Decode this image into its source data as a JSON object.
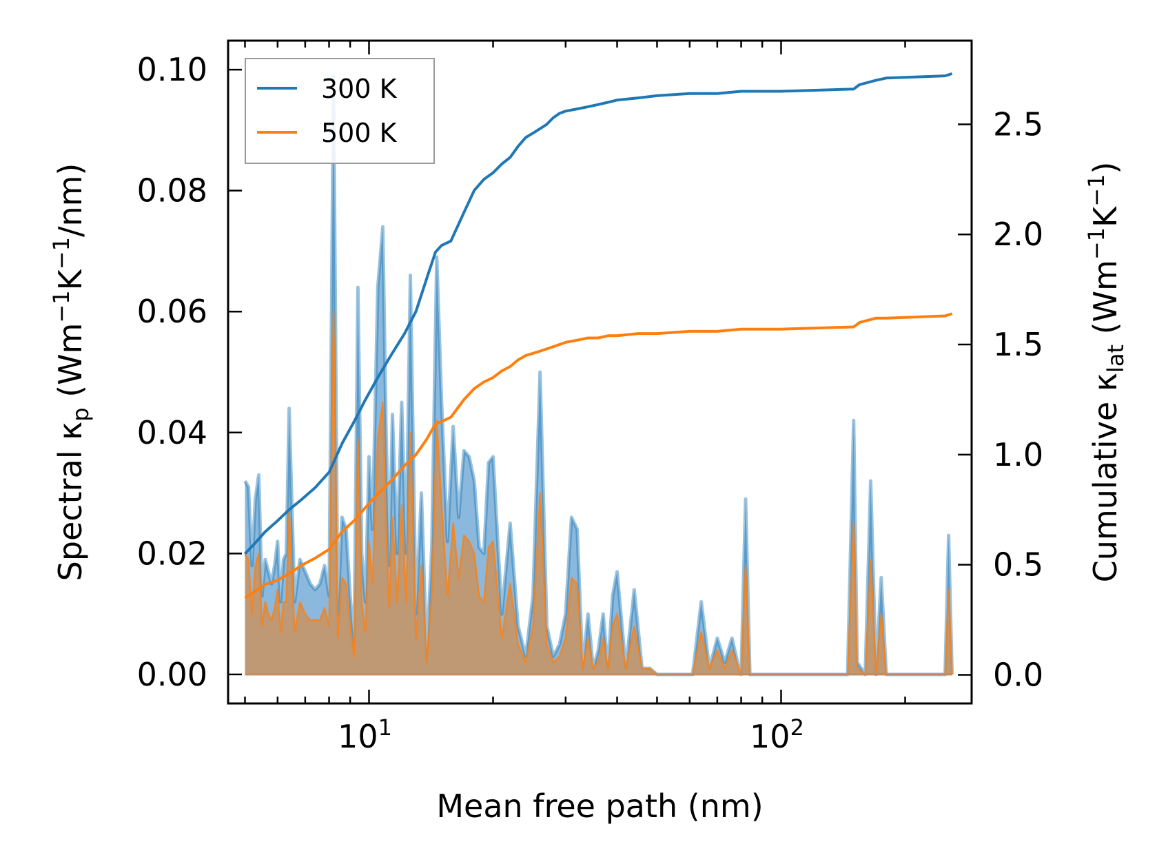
{
  "chart_data": {
    "type": "line",
    "title": "",
    "xlabel": "Mean free path (nm)",
    "ylabel_left": {
      "main": "Spectral κ",
      "sub": "p",
      "units_open": " (Wm",
      "sup1": "−1",
      "mid": "K",
      "sup2": "−1",
      "units_close": "/nm)"
    },
    "ylabel_right": {
      "main": "Cumulative κ",
      "sub": "lat",
      "units_open": " (Wm",
      "sup1": "−1",
      "mid": "K",
      "sup2": "−1",
      "units_close": ")"
    },
    "xscale": "log",
    "xlim": [
      4.55,
      290
    ],
    "ylim_left": [
      -0.0048,
      0.1048
    ],
    "ylim_right": [
      -0.13,
      2.88
    ],
    "x_ticks": [
      {
        "value": 10,
        "base": "10",
        "exp": "1"
      },
      {
        "value": 100,
        "base": "10",
        "exp": "2"
      }
    ],
    "y_left_ticks": [
      "0.00",
      "0.02",
      "0.04",
      "0.06",
      "0.08",
      "0.10"
    ],
    "y_right_ticks": [
      "0.0",
      "0.5",
      "1.0",
      "1.5",
      "2.0",
      "2.5"
    ],
    "legend": {
      "position": "top-left",
      "entries": [
        "300 K",
        "500 K"
      ]
    },
    "colors": {
      "t300": "#1f77b4",
      "t500": "#ff7f0e",
      "fill300": "#5a9bd0",
      "fill500": "#c49568"
    },
    "spectral": {
      "x": [
        5.0,
        5.1,
        5.2,
        5.3,
        5.4,
        5.5,
        5.6,
        5.7,
        5.8,
        5.9,
        6.0,
        6.1,
        6.2,
        6.3,
        6.4,
        6.6,
        6.8,
        7.0,
        7.2,
        7.4,
        7.6,
        7.8,
        8.0,
        8.2,
        8.4,
        8.6,
        8.8,
        9.0,
        9.2,
        9.4,
        9.6,
        9.8,
        10.0,
        10.2,
        10.5,
        10.8,
        11.0,
        11.2,
        11.4,
        11.7,
        12.0,
        12.3,
        12.6,
        13.0,
        13.4,
        13.8,
        14.2,
        14.6,
        15.0,
        15.5,
        16.0,
        16.5,
        17.0,
        17.5,
        18.0,
        18.5,
        19.0,
        19.5,
        20.0,
        21.0,
        22.0,
        23.0,
        24.0,
        25.0,
        26.0,
        27.0,
        28.0,
        29.0,
        30.0,
        31.0,
        32.0,
        33.0,
        34.0,
        35.0,
        36.0,
        37.0,
        38.0,
        39.0,
        40.0,
        42.0,
        44.0,
        46.0,
        48.0,
        50.0,
        52.0,
        55.0,
        58.0,
        61.0,
        64.0,
        67.0,
        70.0,
        73.0,
        76.0,
        79.0,
        80.0,
        82.0,
        84.0,
        90.0,
        100.0,
        120.0,
        145.0,
        150.0,
        153.0,
        160.0,
        165.0,
        170.0,
        175.0,
        180.0,
        185.0,
        190.0,
        200.0,
        240.0,
        250.0,
        255.0,
        260.0
      ],
      "s300": [
        0.032,
        0.031,
        0.018,
        0.029,
        0.033,
        0.013,
        0.019,
        0.017,
        0.015,
        0.018,
        0.022,
        0.012,
        0.019,
        0.02,
        0.044,
        0.012,
        0.019,
        0.017,
        0.015,
        0.014,
        0.015,
        0.018,
        0.013,
        0.099,
        0.01,
        0.026,
        0.024,
        0.013,
        0.005,
        0.064,
        0.02,
        0.012,
        0.036,
        0.024,
        0.064,
        0.074,
        0.04,
        0.018,
        0.043,
        0.02,
        0.045,
        0.02,
        0.066,
        0.01,
        0.03,
        0.003,
        0.021,
        0.069,
        0.045,
        0.022,
        0.041,
        0.026,
        0.037,
        0.036,
        0.032,
        0.021,
        0.02,
        0.035,
        0.036,
        0.01,
        0.025,
        0.008,
        0.003,
        0.013,
        0.05,
        0.008,
        0.003,
        0.005,
        0.01,
        0.026,
        0.024,
        0.001,
        0.01,
        0.001,
        0.004,
        0.01,
        0.001,
        0.013,
        0.017,
        0.001,
        0.014,
        0.001,
        0.001,
        0.0,
        0.0,
        0.0,
        0.0,
        0.0,
        0.012,
        0.001,
        0.006,
        0.002,
        0.006,
        0.001,
        0.0,
        0.029,
        0.0,
        0.0,
        0.0,
        0.0,
        0.0,
        0.042,
        0.002,
        0.0,
        0.032,
        0.0,
        0.016,
        0.0,
        0.0,
        0.0,
        0.0,
        0.0,
        0.0,
        0.023,
        0.0
      ],
      "s500": [
        0.02,
        0.019,
        0.01,
        0.018,
        0.02,
        0.008,
        0.012,
        0.01,
        0.009,
        0.011,
        0.014,
        0.007,
        0.012,
        0.012,
        0.027,
        0.007,
        0.012,
        0.01,
        0.009,
        0.009,
        0.009,
        0.011,
        0.008,
        0.06,
        0.006,
        0.016,
        0.015,
        0.008,
        0.003,
        0.039,
        0.012,
        0.007,
        0.022,
        0.015,
        0.039,
        0.045,
        0.024,
        0.011,
        0.026,
        0.012,
        0.028,
        0.012,
        0.04,
        0.006,
        0.018,
        0.002,
        0.013,
        0.042,
        0.028,
        0.013,
        0.025,
        0.016,
        0.023,
        0.022,
        0.02,
        0.013,
        0.012,
        0.021,
        0.022,
        0.006,
        0.015,
        0.005,
        0.002,
        0.008,
        0.03,
        0.005,
        0.002,
        0.003,
        0.006,
        0.016,
        0.015,
        0.001,
        0.006,
        0.001,
        0.002,
        0.006,
        0.001,
        0.008,
        0.01,
        0.001,
        0.008,
        0.001,
        0.001,
        0.0,
        0.0,
        0.0,
        0.0,
        0.0,
        0.007,
        0.001,
        0.004,
        0.001,
        0.004,
        0.001,
        0.0,
        0.018,
        0.0,
        0.0,
        0.0,
        0.0,
        0.0,
        0.025,
        0.001,
        0.0,
        0.019,
        0.0,
        0.01,
        0.0,
        0.0,
        0.0,
        0.0,
        0.0,
        0.0,
        0.014,
        0.0
      ]
    },
    "cumulative": {
      "x": [
        5.0,
        5.3,
        5.6,
        6.0,
        6.4,
        6.9,
        7.4,
        8.0,
        8.6,
        9.2,
        9.8,
        10.5,
        11.3,
        12.2,
        13.0,
        13.8,
        14.5,
        15.0,
        15.8,
        17.0,
        18.0,
        19.0,
        20.0,
        21.0,
        22.0,
        23.0,
        24.0,
        25.0,
        26.0,
        27.0,
        28.0,
        29.0,
        30.0,
        32.0,
        34.0,
        36.0,
        38.0,
        40.0,
        45.0,
        50.0,
        60.0,
        70.0,
        80.0,
        100.0,
        150.0,
        155.0,
        170.0,
        180.0,
        250.0,
        260.0
      ],
      "c300": [
        0.55,
        0.6,
        0.65,
        0.7,
        0.75,
        0.8,
        0.85,
        0.92,
        1.05,
        1.15,
        1.25,
        1.35,
        1.45,
        1.55,
        1.65,
        1.8,
        1.92,
        1.95,
        1.97,
        2.1,
        2.2,
        2.25,
        2.28,
        2.32,
        2.35,
        2.4,
        2.44,
        2.46,
        2.48,
        2.5,
        2.53,
        2.55,
        2.56,
        2.57,
        2.58,
        2.59,
        2.6,
        2.61,
        2.62,
        2.63,
        2.64,
        2.64,
        2.65,
        2.65,
        2.66,
        2.68,
        2.7,
        2.71,
        2.72,
        2.73
      ],
      "c500": [
        0.35,
        0.38,
        0.41,
        0.43,
        0.46,
        0.5,
        0.53,
        0.57,
        0.65,
        0.7,
        0.76,
        0.82,
        0.88,
        0.95,
        1.0,
        1.07,
        1.14,
        1.15,
        1.17,
        1.25,
        1.3,
        1.33,
        1.35,
        1.38,
        1.4,
        1.43,
        1.45,
        1.46,
        1.47,
        1.48,
        1.49,
        1.5,
        1.51,
        1.52,
        1.53,
        1.53,
        1.54,
        1.54,
        1.55,
        1.55,
        1.56,
        1.56,
        1.57,
        1.57,
        1.58,
        1.6,
        1.62,
        1.62,
        1.63,
        1.64
      ]
    }
  }
}
